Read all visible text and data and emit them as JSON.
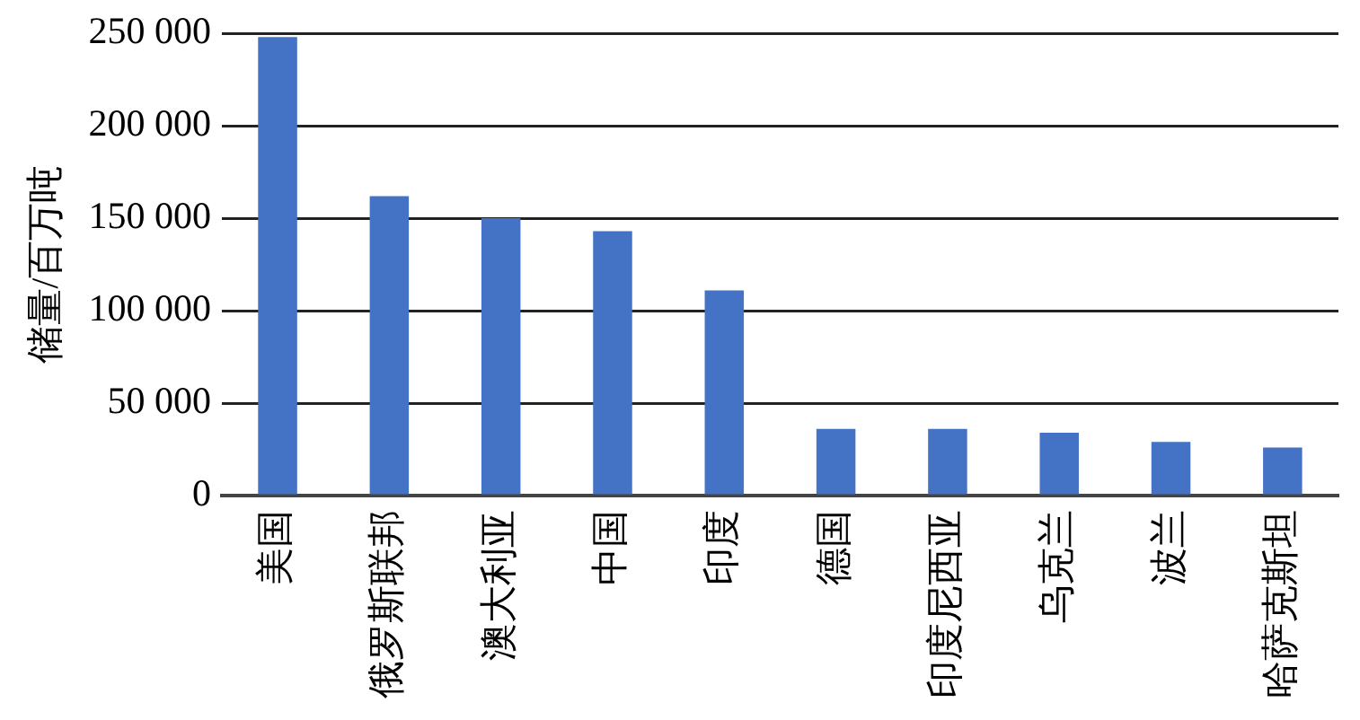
{
  "chart_data": {
    "type": "bar",
    "ylabel": "储量/百万吨",
    "categories": [
      "美国",
      "俄罗斯联邦",
      "澳大利亚",
      "中国",
      "印度",
      "德国",
      "印度尼西亚",
      "乌克兰",
      "波兰",
      "哈萨克斯坦"
    ],
    "values": [
      248000,
      162000,
      150000,
      143000,
      111000,
      36000,
      36000,
      34000,
      29000,
      26000
    ],
    "color": "#4472c4",
    "ylim": [
      0,
      250000
    ],
    "yticks": [
      {
        "value": 0,
        "label": "0"
      },
      {
        "value": 50000,
        "label": "50 000"
      },
      {
        "value": 100000,
        "label": "100 000"
      },
      {
        "value": 150000,
        "label": "150 000"
      },
      {
        "value": 200000,
        "label": "200 000"
      },
      {
        "value": 250000,
        "label": "250 000"
      }
    ],
    "grid": "y",
    "legend": false
  }
}
